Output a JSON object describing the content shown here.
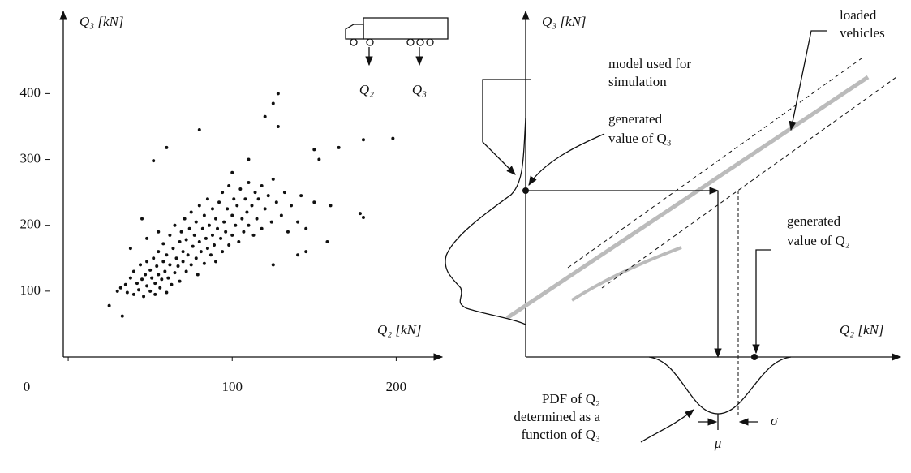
{
  "chart_data": {
    "type": "scatter",
    "color": "#111",
    "x_label": "Q₂ [kN]",
    "y_label": "Q₃ [kN]",
    "xlim": [
      -3,
      228
    ],
    "ylim": [
      0,
      520
    ],
    "xticks": [
      0,
      100,
      200
    ],
    "yticks": [
      100,
      200,
      300,
      400
    ],
    "x": [
      30,
      32,
      35,
      36,
      38,
      40,
      40,
      42,
      43,
      44,
      45,
      46,
      47,
      48,
      48,
      50,
      50,
      51,
      52,
      53,
      53,
      54,
      55,
      55,
      56,
      57,
      58,
      58,
      59,
      60,
      60,
      61,
      62,
      62,
      63,
      64,
      65,
      65,
      66,
      67,
      68,
      68,
      69,
      70,
      70,
      71,
      72,
      72,
      73,
      74,
      75,
      75,
      76,
      77,
      78,
      78,
      79,
      80,
      80,
      81,
      82,
      83,
      83,
      84,
      85,
      85,
      86,
      87,
      88,
      88,
      89,
      90,
      90,
      91,
      92,
      93,
      94,
      94,
      95,
      96,
      97,
      98,
      98,
      100,
      100,
      101,
      102,
      103,
      104,
      105,
      106,
      107,
      108,
      109,
      110,
      110,
      112,
      113,
      114,
      115,
      116,
      118,
      118,
      120,
      122,
      124,
      125,
      127,
      130,
      132,
      134,
      136,
      140,
      142,
      145,
      140,
      145,
      158,
      125,
      25,
      33,
      128,
      125,
      128,
      120,
      150,
      165,
      180,
      198,
      80,
      60,
      52,
      178,
      180,
      153,
      110,
      100,
      160,
      150,
      45,
      48,
      38,
      55
    ],
    "values": [
      100,
      105,
      110,
      98,
      120,
      95,
      130,
      112,
      102,
      140,
      118,
      92,
      125,
      108,
      145,
      100,
      132,
      120,
      150,
      95,
      112,
      138,
      125,
      160,
      105,
      118,
      145,
      172,
      130,
      98,
      155,
      120,
      140,
      185,
      110,
      165,
      128,
      200,
      150,
      138,
      175,
      115,
      190,
      145,
      160,
      210,
      130,
      178,
      155,
      195,
      140,
      220,
      168,
      185,
      150,
      205,
      125,
      175,
      230,
      160,
      195,
      142,
      215,
      180,
      165,
      240,
      200,
      155,
      185,
      225,
      170,
      210,
      145,
      195,
      235,
      180,
      160,
      250,
      205,
      190,
      225,
      170,
      260,
      215,
      185,
      240,
      200,
      230,
      175,
      255,
      210,
      190,
      240,
      220,
      200,
      265,
      230,
      185,
      250,
      210,
      240,
      195,
      260,
      225,
      245,
      205,
      270,
      235,
      215,
      250,
      190,
      230,
      205,
      245,
      195,
      155,
      160,
      175,
      140,
      78,
      62,
      400,
      385,
      350,
      365,
      315,
      318,
      330,
      332,
      345,
      318,
      298,
      218,
      212,
      300,
      300,
      280,
      230,
      235,
      210,
      180,
      165,
      190
    ]
  },
  "truck_labels": [
    "Q₂",
    "Q₃"
  ],
  "diagram": {
    "y_label": "Q₃ [kN]",
    "x_label": "Q₂ [kN]",
    "model": [
      "model used for",
      "simulation"
    ],
    "gen_q3": [
      "generated",
      "value of Q₃"
    ],
    "loaded": [
      "loaded",
      "vehicles"
    ],
    "gen_q2": [
      "generated",
      "value of Q₂"
    ],
    "pdf": [
      "PDF of Q₂",
      "determined as a",
      "function of Q₃"
    ],
    "mu": "μ",
    "sigma": "σ"
  }
}
